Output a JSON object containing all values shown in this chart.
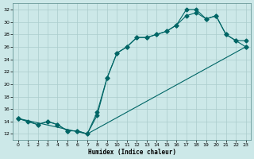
{
  "xlabel": "Humidex (Indice chaleur)",
  "background_color": "#cce8e8",
  "grid_color": "#aacccc",
  "line_color": "#006666",
  "xlim": [
    -0.5,
    23.5
  ],
  "ylim": [
    11,
    33
  ],
  "yticks": [
    12,
    14,
    16,
    18,
    20,
    22,
    24,
    26,
    28,
    30,
    32
  ],
  "xticks": [
    0,
    1,
    2,
    3,
    4,
    5,
    6,
    7,
    8,
    9,
    10,
    11,
    12,
    13,
    14,
    15,
    16,
    17,
    18,
    19,
    20,
    21,
    22,
    23
  ],
  "line1_x": [
    0,
    1,
    2,
    3,
    4,
    5,
    6,
    7,
    8,
    9,
    10,
    11,
    12,
    13,
    14,
    15,
    16,
    17,
    18,
    19,
    20,
    21,
    22,
    23
  ],
  "line1_y": [
    14.5,
    14,
    13.5,
    14,
    13.5,
    12.5,
    12.5,
    12,
    15,
    21,
    25,
    26,
    27.5,
    27.5,
    28,
    28.5,
    29.5,
    32,
    32,
    30.5,
    31,
    28,
    27,
    27
  ],
  "line2_x": [
    0,
    2,
    3,
    4,
    5,
    6,
    7,
    8,
    9,
    10,
    11,
    12,
    13,
    14,
    15,
    16,
    17,
    18,
    19,
    20,
    21,
    22,
    23
  ],
  "line2_y": [
    14.5,
    13.5,
    14,
    13.5,
    12.5,
    12.5,
    12,
    15.5,
    21,
    25,
    26,
    27.5,
    27.5,
    28,
    28.5,
    29.5,
    31,
    31.5,
    30.5,
    31,
    28,
    27,
    26
  ],
  "line3_x": [
    0,
    7,
    23
  ],
  "line3_y": [
    14.5,
    12,
    26
  ],
  "marker_size": 2.5,
  "line_width": 0.8
}
